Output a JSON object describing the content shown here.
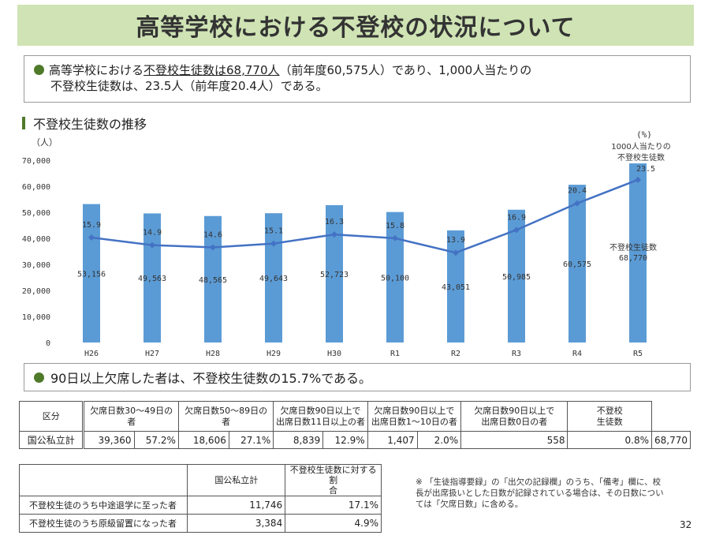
{
  "title": "高等学校における不登校の状況について",
  "summary": {
    "line1_a": "高等学校における",
    "line1_u": "不登校生徒数は68,770人",
    "line1_b": "（前年度60,575人）であり、1,000人当たりの",
    "line2": "不登校生徒数は、23.5人（前年度20.4人）である。"
  },
  "chart_heading": "不登校生徒数の推移",
  "chart_data": {
    "type": "bar",
    "categories": [
      "H26",
      "H27",
      "H28",
      "H29",
      "H30",
      "R1",
      "R2",
      "R3",
      "R4",
      "R5"
    ],
    "series": [
      {
        "name": "不登校生徒数",
        "type": "bar",
        "axis": "left",
        "values": [
          53156,
          49563,
          48565,
          49643,
          52723,
          50100,
          43051,
          50985,
          60575,
          68770
        ],
        "labels": [
          "53,156",
          "49,563",
          "48,565",
          "49,643",
          "52,723",
          "50,100",
          "43,051",
          "50,985",
          "60,575",
          "68,770"
        ]
      },
      {
        "name": "1000人当たりの不登校生徒数",
        "type": "line",
        "axis": "right",
        "values": [
          15.9,
          14.9,
          14.6,
          15.1,
          16.3,
          15.8,
          13.9,
          16.9,
          20.4,
          23.5
        ],
        "labels": [
          "15.9",
          "14.9",
          "14.6",
          "15.1",
          "16.3",
          "15.8",
          "13.9",
          "16.9",
          "20.4",
          "23.5"
        ]
      }
    ],
    "ylim": [
      0,
      70000
    ],
    "yticks": [
      "0",
      "10,000",
      "20,000",
      "30,000",
      "40,000",
      "50,000",
      "60,000",
      "70,000"
    ],
    "y2lim": [
      0,
      24
    ],
    "yunit": "（人）",
    "y2unit": "(%)",
    "bar_annotation_line1": "不登校生徒数",
    "line_annotation_line1": "1000人当たりの",
    "line_annotation_line2": "不登校生徒数",
    "bar_color": "#5b9bd5",
    "line_color": "#4472c4",
    "grid": false
  },
  "box2": {
    "text": "90日以上欠席した者は、不登校生徒数の15.7%である。"
  },
  "table1": {
    "headers": [
      "区分",
      "欠席日数30～49日の者",
      "欠席日数50～89日の者",
      "欠席日数90日以上で",
      "出席日数11日以上の者",
      "欠席日数90日以上で",
      "出席日数1～10日の者",
      "欠席日数90日以上で",
      "出席日数0日の者",
      "不登校",
      "生徒数"
    ],
    "row_label": "国公私立計",
    "values": [
      "39,360",
      "57.2%",
      "18,606",
      "27.1%",
      "8,839",
      "12.9%",
      "1,407",
      "2.0%",
      "558",
      "0.8%",
      "68,770"
    ]
  },
  "table2": {
    "col1": "国公私立計",
    "col2_a": "不登校生徒数に対する割",
    "col2_b": "合",
    "rows": [
      {
        "label": "不登校生徒のうち中途退学に至った者",
        "count": "11,746",
        "ratio": "17.1%"
      },
      {
        "label": "不登校生徒のうち原級留置になった者",
        "count": "3,384",
        "ratio": "4.9%"
      }
    ]
  },
  "note": "※ 「生徒指導要録」の「出欠の記録欄」のうち、「備考」欄に、校長が出席扱いとした日数が記録されている場合は、その日数については「欠席日数」に含める。",
  "page_number": "32"
}
